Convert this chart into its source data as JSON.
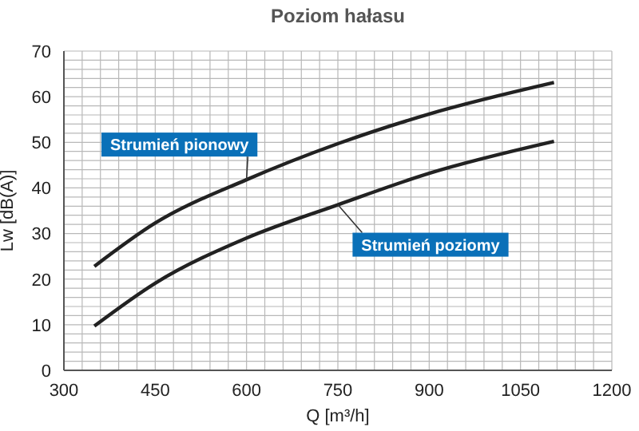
{
  "chart_data": {
    "type": "line",
    "title": "Poziom hałasu",
    "xlabel": "Q [m³/h]",
    "ylabel": "Lw [dB(A)]",
    "x": [
      350,
      450,
      600,
      750,
      900,
      1105
    ],
    "series": [
      {
        "name": "Strumień pionowy",
        "color": "#222222",
        "values": [
          22.8,
          32.3,
          41.8,
          49.7,
          56.2,
          63.1
        ]
      },
      {
        "name": "Strumień poziomy",
        "color": "#222222",
        "values": [
          9.7,
          19.1,
          29.0,
          36.3,
          43.2,
          50.2
        ]
      }
    ],
    "xlim": [
      300,
      1200
    ],
    "xticks": [
      300,
      {
        "value": 330,
        "label": null
      },
      {
        "value": 360,
        "label": null
      },
      {
        "value": 390,
        "label": null
      },
      {
        "value": 420,
        "label": null
      },
      450,
      {
        "value": 480,
        "label": null
      },
      {
        "value": 510,
        "label": null
      },
      {
        "value": 540,
        "label": null
      },
      {
        "value": 570,
        "label": null
      },
      600,
      {
        "value": 630,
        "label": null
      },
      {
        "value": 660,
        "label": null
      },
      {
        "value": 690,
        "label": null
      },
      {
        "value": 720,
        "label": null
      },
      750,
      {
        "value": 780,
        "label": null
      },
      {
        "value": 810,
        "label": null
      },
      {
        "value": 840,
        "label": null
      },
      {
        "value": 870,
        "label": null
      },
      900,
      {
        "value": 930,
        "label": null
      },
      {
        "value": 960,
        "label": null
      },
      {
        "value": 990,
        "label": null
      },
      {
        "value": 1020,
        "label": null
      },
      1050,
      {
        "value": 1080,
        "label": null
      },
      {
        "value": 1110,
        "label": null
      },
      {
        "value": 1140,
        "label": null
      },
      {
        "value": 1170,
        "label": null
      },
      1200
    ],
    "ylim": [
      0,
      70
    ],
    "yticks": [
      0,
      {
        "value": 2,
        "label": null
      },
      {
        "value": 4,
        "label": null
      },
      {
        "value": 6,
        "label": null
      },
      {
        "value": 8,
        "label": null
      },
      10,
      {
        "value": 12,
        "label": null
      },
      {
        "value": 14,
        "label": null
      },
      {
        "value": 16,
        "label": null
      },
      {
        "value": 18,
        "label": null
      },
      20,
      {
        "value": 22,
        "label": null
      },
      {
        "value": 24,
        "label": null
      },
      {
        "value": 26,
        "label": null
      },
      {
        "value": 28,
        "label": null
      },
      30,
      {
        "value": 32,
        "label": null
      },
      {
        "value": 34,
        "label": null
      },
      {
        "value": 36,
        "label": null
      },
      {
        "value": 38,
        "label": null
      },
      40,
      {
        "value": 42,
        "label": null
      },
      {
        "value": 44,
        "label": null
      },
      {
        "value": 46,
        "label": null
      },
      {
        "value": 48,
        "label": null
      },
      50,
      {
        "value": 52,
        "label": null
      },
      {
        "value": 54,
        "label": null
      },
      {
        "value": 56,
        "label": null
      },
      {
        "value": 58,
        "label": null
      },
      60,
      {
        "value": 62,
        "label": null
      },
      {
        "value": 64,
        "label": null
      },
      {
        "value": 66,
        "label": null
      },
      {
        "value": 68,
        "label": null
      },
      70
    ],
    "grid": true,
    "legend": false,
    "marker": "none",
    "line_style": "solid"
  }
}
